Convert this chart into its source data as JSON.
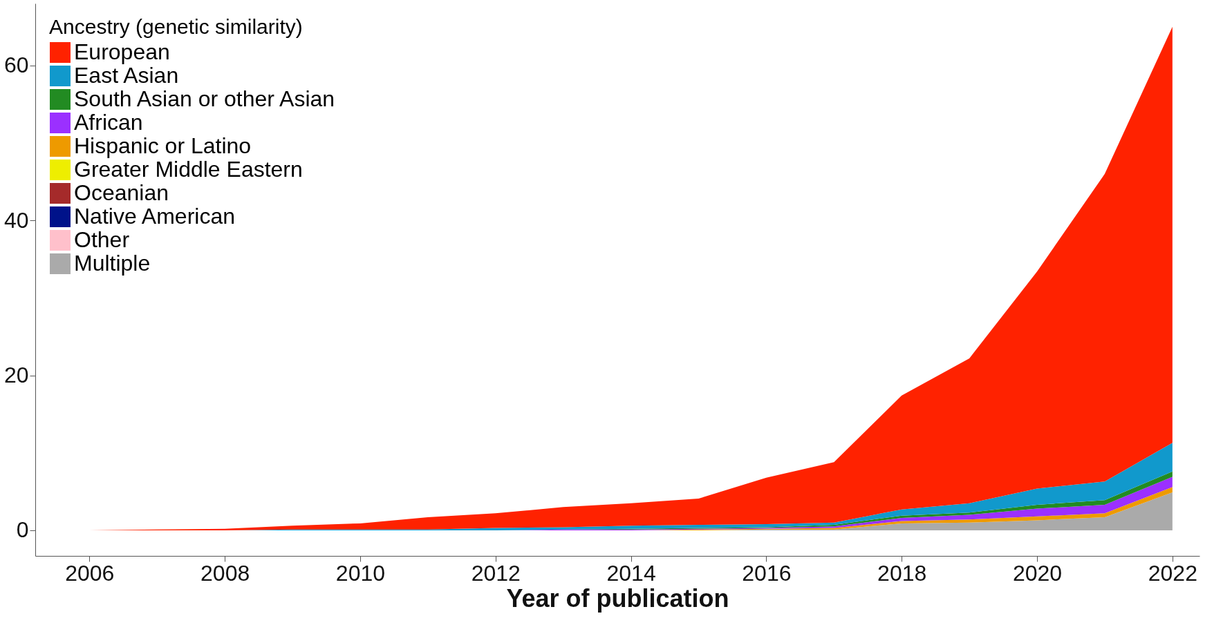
{
  "chart_data": {
    "type": "area",
    "stacked": true,
    "xlabel": "Year of publication",
    "legend_title": "Ancestry (genetic similarity)",
    "legend": "top left",
    "grid": false,
    "x": [
      2006,
      2007,
      2008,
      2009,
      2010,
      2011,
      2012,
      2013,
      2014,
      2015,
      2016,
      2017,
      2018,
      2019,
      2020,
      2021,
      2022
    ],
    "xlim": [
      2005.2,
      2022.4
    ],
    "xticks": [
      2006,
      2008,
      2010,
      2012,
      2014,
      2016,
      2018,
      2020,
      2022
    ],
    "ylim": [
      -3.3,
      68
    ],
    "yticks": [
      0,
      20,
      40,
      60
    ],
    "series": [
      {
        "name": "Multiple",
        "color": "#aaaaaa",
        "values": [
          0,
          0,
          0,
          0,
          0,
          0,
          0,
          0,
          0,
          0,
          0.1,
          0.1,
          0.9,
          1.0,
          1.3,
          1.7,
          4.9
        ]
      },
      {
        "name": "Other",
        "color": "#ffc0cb",
        "values": [
          null,
          null,
          null,
          null,
          null,
          null,
          null,
          null,
          null,
          null,
          null,
          null,
          null,
          null,
          null,
          null,
          null
        ]
      },
      {
        "name": "Native American",
        "color": "#00128a",
        "values": [
          null,
          null,
          null,
          null,
          null,
          null,
          null,
          null,
          null,
          null,
          null,
          null,
          null,
          null,
          null,
          null,
          null
        ]
      },
      {
        "name": "Oceanian",
        "color": "#a52a2a",
        "values": [
          null,
          null,
          null,
          null,
          null,
          null,
          null,
          null,
          null,
          null,
          null,
          null,
          null,
          null,
          null,
          null,
          null
        ]
      },
      {
        "name": "Greater Middle Eastern",
        "color": "#eeee00",
        "values": [
          null,
          null,
          null,
          null,
          null,
          null,
          null,
          null,
          null,
          null,
          null,
          null,
          null,
          null,
          null,
          null,
          null
        ]
      },
      {
        "name": "Hispanic or Latino",
        "color": "#ee9a00",
        "values": [
          0,
          0,
          0,
          0,
          0,
          0,
          0,
          0,
          0,
          0.1,
          0.1,
          0.2,
          0.3,
          0.4,
          0.5,
          0.5,
          0.7
        ]
      },
      {
        "name": "African",
        "color": "#9b30ff",
        "values": [
          0,
          0,
          0,
          0,
          0,
          0,
          0,
          0.1,
          0.1,
          0.1,
          0.1,
          0.2,
          0.4,
          0.6,
          1.0,
          1.1,
          1.3
        ]
      },
      {
        "name": "South Asian or other Asian",
        "color": "#228b22",
        "values": [
          0,
          0,
          0,
          0,
          0,
          0,
          0,
          0,
          0.1,
          0.1,
          0.1,
          0.2,
          0.3,
          0.3,
          0.5,
          0.6,
          0.7
        ]
      },
      {
        "name": "East Asian",
        "color": "#1199cc",
        "values": [
          0,
          0,
          0,
          0.1,
          0.1,
          0.1,
          0.3,
          0.3,
          0.4,
          0.4,
          0.4,
          0.3,
          0.8,
          1.2,
          2.1,
          2.4,
          3.7
        ]
      },
      {
        "name": "European",
        "color": "#ff2200",
        "values": [
          0,
          0.1,
          0.2,
          0.5,
          0.8,
          1.6,
          1.9,
          2.6,
          2.9,
          3.4,
          6.0,
          7.8,
          14.7,
          18.7,
          28.0,
          39.7,
          53.7
        ]
      }
    ]
  }
}
